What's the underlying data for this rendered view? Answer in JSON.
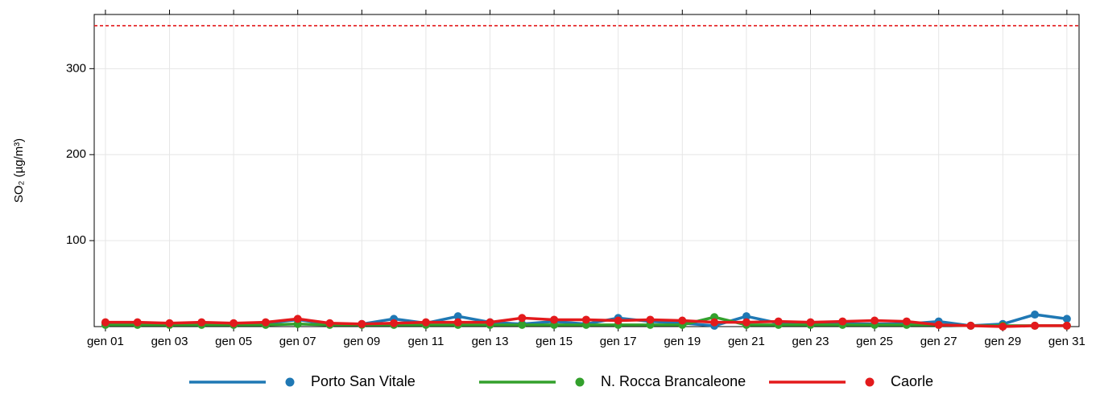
{
  "chart_data": {
    "type": "line",
    "y_label": "SO₂ (µg/m³)",
    "x": [
      1,
      2,
      3,
      4,
      5,
      6,
      7,
      8,
      9,
      10,
      11,
      12,
      13,
      14,
      15,
      16,
      17,
      18,
      19,
      20,
      21,
      22,
      23,
      24,
      25,
      26,
      27,
      28,
      29,
      30,
      31
    ],
    "xlim": [
      0.65,
      31.38
    ],
    "xticks": [
      {
        "value": 1,
        "label": "gen 01"
      },
      {
        "value": 3,
        "label": "gen 03"
      },
      {
        "value": 5,
        "label": "gen 05"
      },
      {
        "value": 7,
        "label": "gen 07"
      },
      {
        "value": 9,
        "label": "gen 09"
      },
      {
        "value": 11,
        "label": "gen 11"
      },
      {
        "value": 13,
        "label": "gen 13"
      },
      {
        "value": 15,
        "label": "gen 15"
      },
      {
        "value": 17,
        "label": "gen 17"
      },
      {
        "value": 19,
        "label": "gen 19"
      },
      {
        "value": 21,
        "label": "gen 21"
      },
      {
        "value": 23,
        "label": "gen 23"
      },
      {
        "value": 25,
        "label": "gen 25"
      },
      {
        "value": 27,
        "label": "gen 27"
      },
      {
        "value": 29,
        "label": "gen 29"
      },
      {
        "value": 31,
        "label": "gen 31"
      }
    ],
    "ylim": [
      0,
      363
    ],
    "yticks": [
      100,
      200,
      300
    ],
    "grid": true,
    "threshold": {
      "value": 350,
      "color": "#e31a1c"
    },
    "legend": "bottom",
    "series": [
      {
        "name": "Porto San Vitale",
        "color": "#1f78b4",
        "values": [
          4,
          4,
          3,
          4,
          3,
          4,
          8,
          3,
          3,
          9,
          4,
          12,
          5,
          3,
          6,
          3,
          10,
          6,
          4,
          1,
          12,
          4,
          3,
          3,
          3,
          3,
          6,
          1,
          3,
          14,
          9
        ]
      },
      {
        "name": "N. Rocca Brancaleone",
        "color": "#33a02c",
        "values": [
          2,
          2,
          2,
          2,
          2,
          2,
          3,
          2,
          2,
          2,
          2,
          2,
          2,
          2,
          2,
          2,
          2,
          2,
          2,
          11,
          2,
          2,
          2,
          2,
          2,
          2,
          2,
          1,
          1,
          1,
          1
        ]
      },
      {
        "name": "Caorle",
        "color": "#e31a1c",
        "values": [
          5,
          5,
          4,
          5,
          4,
          5,
          9,
          4,
          3,
          4,
          5,
          5,
          5,
          10,
          8,
          8,
          7,
          8,
          7,
          5,
          5,
          6,
          5,
          6,
          7,
          6,
          2,
          1,
          0,
          1,
          1
        ]
      }
    ]
  }
}
